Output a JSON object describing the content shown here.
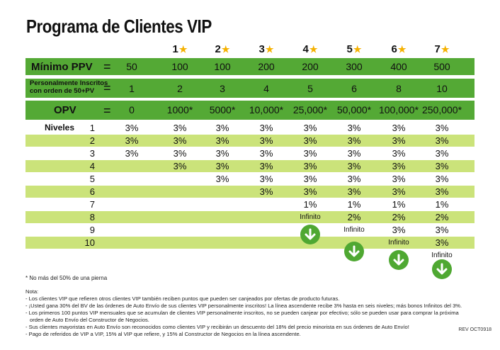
{
  "title": "Programa de Clientes VIP",
  "levels": [
    "1",
    "2",
    "3",
    "4",
    "5",
    "6",
    "7"
  ],
  "equals": "=",
  "bands": {
    "minimo": {
      "label": "Mínimo PPV",
      "values": [
        "50",
        "100",
        "100",
        "200",
        "200",
        "300",
        "400",
        "500"
      ]
    },
    "personal": {
      "label_line1": "Personalmente Inscritos",
      "label_line2": "con orden de 50+PV",
      "values": [
        "1",
        "2",
        "3",
        "4",
        "5",
        "6",
        "8",
        "10"
      ]
    },
    "opv": {
      "label": "OPV",
      "values": [
        "0",
        "1000*",
        "5000*",
        "10,000*",
        "25,000*",
        "50,000*",
        "100,000*",
        "250,000*"
      ]
    }
  },
  "niveles_label": "Niveles",
  "rows": [
    {
      "level": "1",
      "cells": [
        "3%",
        "3%",
        "3%",
        "3%",
        "3%",
        "3%",
        "3%",
        "3%"
      ]
    },
    {
      "level": "2",
      "cells": [
        "3%",
        "3%",
        "3%",
        "3%",
        "3%",
        "3%",
        "3%",
        "3%"
      ]
    },
    {
      "level": "3",
      "cells": [
        "3%",
        "3%",
        "3%",
        "3%",
        "3%",
        "3%",
        "3%",
        "3%"
      ]
    },
    {
      "level": "4",
      "cells": [
        "",
        "3%",
        "3%",
        "3%",
        "3%",
        "3%",
        "3%",
        "3%"
      ]
    },
    {
      "level": "5",
      "cells": [
        "",
        "",
        "3%",
        "3%",
        "3%",
        "3%",
        "3%",
        "3%"
      ]
    },
    {
      "level": "6",
      "cells": [
        "",
        "",
        "",
        "3%",
        "3%",
        "3%",
        "3%",
        "3%"
      ]
    },
    {
      "level": "7",
      "cells": [
        "",
        "",
        "",
        "",
        "1%",
        "1%",
        "1%",
        "1%"
      ]
    },
    {
      "level": "8",
      "cells": [
        "",
        "",
        "",
        "",
        "Infinito",
        "2%",
        "2%",
        "2%"
      ]
    },
    {
      "level": "9",
      "cells": [
        "",
        "",
        "",
        "",
        "",
        "Infinito",
        "3%",
        "3%"
      ]
    },
    {
      "level": "10",
      "cells": [
        "",
        "",
        "",
        "",
        "",
        "",
        "Infinito",
        "3%"
      ]
    }
  ],
  "extra_infinito": "Infinito",
  "footnote": "* No más del 50% de una pierna",
  "notes_title": "Nota:",
  "notes": [
    "- Los clientes VIP que refieren otros clientes VIP también reciben puntos que pueden ser canjeados por ofertas de producto futuras.",
    "- ¡Usted gana 30% del BV de las órdenes de Auto Envío de sus clientes VIP personalmente inscritos! La línea ascendente recibe 3% hasta en seis niveles; más bonos Infinitos del 3%.",
    "- Los primeros 100 puntos VIP mensuales que se acumulan de clientes VIP personalmente inscritos, no se pueden canjear por efectivo; sólo se pueden usar para comprar la próxima",
    "  orden de Auto Envío del Constructor de Negocios.",
    "- Sus clientes mayoristas en Auto Envío son reconocidos como clientes VIP y recibirán un descuento del 18% del precio minorista en sus órdenes de Auto Envío!",
    "- Pago de referidos de VIP a VIP, 15% al VIP que refiere, y 15% al Constructor de Negocios en la línea ascendente."
  ],
  "rev": "REV OCT0918"
}
